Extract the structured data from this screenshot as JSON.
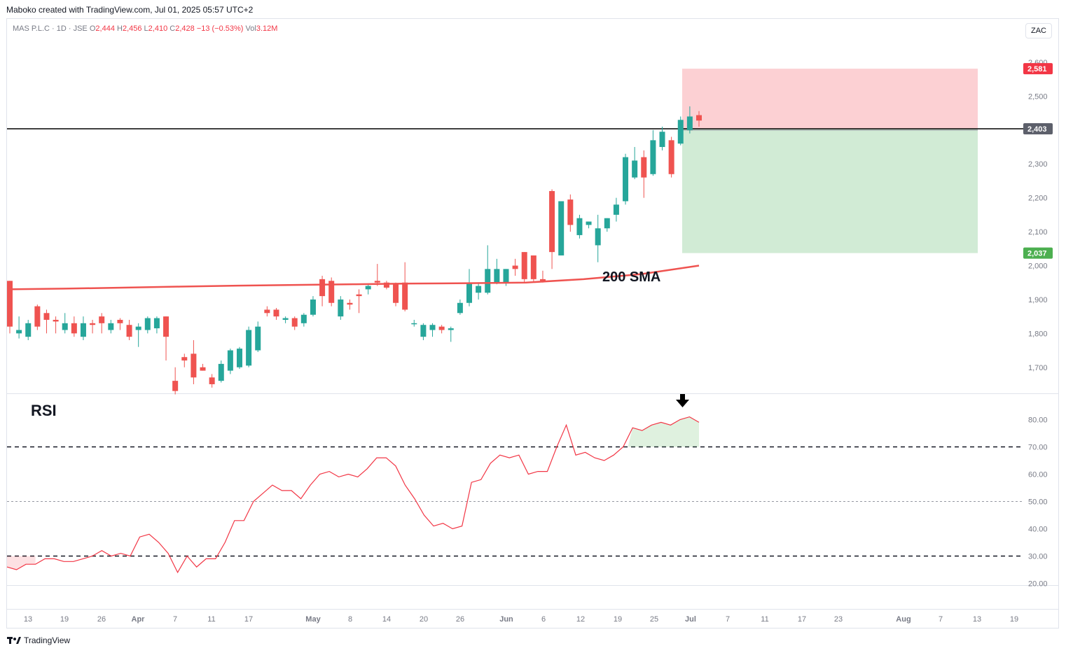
{
  "header": {
    "credit": "Maboko created with TradingView.com, Jul 01, 2025 05:57 UTC+2",
    "symbol": "MAS P.L.C · 1D · JSE",
    "o_label": "O",
    "o": "2,444",
    "h_label": "H",
    "h": "2,456",
    "l_label": "L",
    "l": "2,410",
    "c_label": "C",
    "c": "2,428",
    "change": "−13 (−0.53%)",
    "vol_label": "Vol",
    "vol": "3.12M",
    "currency": "ZAC"
  },
  "footer": {
    "brand": "TradingView",
    "logo_icon": "tradingview-logo-icon"
  },
  "colors": {
    "up": "#26a69a",
    "down": "#ef5350",
    "sma": "#ef5350",
    "rsi": "#f23645",
    "stop_zone": "#fcd0d3",
    "target_zone": "#d1ebd5",
    "stop_tag": "#f23645",
    "target_tag": "#4caf50",
    "hline_tag": "#5d606b"
  },
  "annotations": {
    "sma_label": "200 SMA",
    "rsi_label": "RSI",
    "arrow_icon": "down-arrow-icon"
  },
  "price_tags": {
    "stop": "2,581",
    "hline": "2,403",
    "target": "2,037"
  },
  "chart_data": [
    {
      "type": "candlestick",
      "title": "MAS P.L.C · 1D · JSE",
      "x_ticks": [
        "13",
        "19",
        "26",
        "Apr",
        "7",
        "11",
        "17",
        "May",
        "8",
        "14",
        "20",
        "26",
        "Jun",
        "6",
        "12",
        "19",
        "25",
        "Jul",
        "7",
        "11",
        "17",
        "23",
        "Aug",
        "7",
        "13",
        "19"
      ],
      "y_ticks": [
        "1,700",
        "1,800",
        "1,900",
        "2,000",
        "2,100",
        "2,200",
        "2,300",
        "2,500",
        "2,600"
      ],
      "ylim": [
        1620,
        2640
      ],
      "candles": [
        {
          "o": 1955,
          "h": 1955,
          "l": 1800,
          "c": 1820
        },
        {
          "o": 1800,
          "h": 1850,
          "l": 1785,
          "c": 1810
        },
        {
          "o": 1790,
          "h": 1840,
          "l": 1780,
          "c": 1830
        },
        {
          "o": 1880,
          "h": 1885,
          "l": 1810,
          "c": 1820
        },
        {
          "o": 1860,
          "h": 1870,
          "l": 1800,
          "c": 1840
        },
        {
          "o": 1840,
          "h": 1850,
          "l": 1800,
          "c": 1835
        },
        {
          "o": 1810,
          "h": 1860,
          "l": 1800,
          "c": 1830
        },
        {
          "o": 1830,
          "h": 1850,
          "l": 1790,
          "c": 1800
        },
        {
          "o": 1790,
          "h": 1850,
          "l": 1780,
          "c": 1830
        },
        {
          "o": 1830,
          "h": 1840,
          "l": 1800,
          "c": 1825
        },
        {
          "o": 1850,
          "h": 1860,
          "l": 1800,
          "c": 1830
        },
        {
          "o": 1810,
          "h": 1840,
          "l": 1800,
          "c": 1830
        },
        {
          "o": 1840,
          "h": 1845,
          "l": 1810,
          "c": 1830
        },
        {
          "o": 1825,
          "h": 1840,
          "l": 1780,
          "c": 1790
        },
        {
          "o": 1810,
          "h": 1830,
          "l": 1760,
          "c": 1820
        },
        {
          "o": 1810,
          "h": 1850,
          "l": 1800,
          "c": 1845
        },
        {
          "o": 1815,
          "h": 1850,
          "l": 1800,
          "c": 1845
        },
        {
          "o": 1850,
          "h": 1850,
          "l": 1720,
          "c": 1790
        },
        {
          "o": 1660,
          "h": 1700,
          "l": 1620,
          "c": 1630
        },
        {
          "o": 1730,
          "h": 1740,
          "l": 1700,
          "c": 1720
        },
        {
          "o": 1740,
          "h": 1780,
          "l": 1650,
          "c": 1670
        },
        {
          "o": 1700,
          "h": 1710,
          "l": 1690,
          "c": 1690
        },
        {
          "o": 1670,
          "h": 1680,
          "l": 1640,
          "c": 1650
        },
        {
          "o": 1660,
          "h": 1720,
          "l": 1655,
          "c": 1710
        },
        {
          "o": 1690,
          "h": 1755,
          "l": 1680,
          "c": 1750
        },
        {
          "o": 1700,
          "h": 1760,
          "l": 1695,
          "c": 1755
        },
        {
          "o": 1705,
          "h": 1820,
          "l": 1700,
          "c": 1810
        },
        {
          "o": 1750,
          "h": 1835,
          "l": 1745,
          "c": 1820
        },
        {
          "o": 1870,
          "h": 1880,
          "l": 1850,
          "c": 1860
        },
        {
          "o": 1870,
          "h": 1875,
          "l": 1840,
          "c": 1850
        },
        {
          "o": 1840,
          "h": 1850,
          "l": 1830,
          "c": 1845
        },
        {
          "o": 1845,
          "h": 1850,
          "l": 1810,
          "c": 1820
        },
        {
          "o": 1830,
          "h": 1860,
          "l": 1820,
          "c": 1855
        },
        {
          "o": 1855,
          "h": 1910,
          "l": 1850,
          "c": 1900
        },
        {
          "o": 1960,
          "h": 1970,
          "l": 1880,
          "c": 1910
        },
        {
          "o": 1955,
          "h": 1965,
          "l": 1880,
          "c": 1890
        },
        {
          "o": 1850,
          "h": 1910,
          "l": 1840,
          "c": 1900
        },
        {
          "o": 1890,
          "h": 1900,
          "l": 1870,
          "c": 1885
        },
        {
          "o": 1915,
          "h": 1930,
          "l": 1860,
          "c": 1910
        },
        {
          "o": 1930,
          "h": 1945,
          "l": 1915,
          "c": 1940
        },
        {
          "o": 1955,
          "h": 2005,
          "l": 1940,
          "c": 1950
        },
        {
          "o": 1950,
          "h": 1955,
          "l": 1930,
          "c": 1935
        },
        {
          "o": 1945,
          "h": 1950,
          "l": 1880,
          "c": 1890
        },
        {
          "o": 1950,
          "h": 2010,
          "l": 1865,
          "c": 1870
        },
        {
          "o": 1830,
          "h": 1840,
          "l": 1820,
          "c": 1830
        },
        {
          "o": 1790,
          "h": 1830,
          "l": 1780,
          "c": 1825
        },
        {
          "o": 1810,
          "h": 1830,
          "l": 1790,
          "c": 1825
        },
        {
          "o": 1820,
          "h": 1825,
          "l": 1800,
          "c": 1810
        },
        {
          "o": 1810,
          "h": 1820,
          "l": 1775,
          "c": 1815
        },
        {
          "o": 1860,
          "h": 1900,
          "l": 1855,
          "c": 1890
        },
        {
          "o": 1890,
          "h": 1990,
          "l": 1880,
          "c": 1950
        },
        {
          "o": 1920,
          "h": 1950,
          "l": 1900,
          "c": 1940
        },
        {
          "o": 1920,
          "h": 2060,
          "l": 1915,
          "c": 1990
        },
        {
          "o": 1950,
          "h": 2020,
          "l": 1945,
          "c": 1990
        },
        {
          "o": 1950,
          "h": 1990,
          "l": 1940,
          "c": 1990
        },
        {
          "o": 2000,
          "h": 2020,
          "l": 1970,
          "c": 1990
        },
        {
          "o": 2040,
          "h": 2040,
          "l": 1950,
          "c": 1960
        },
        {
          "o": 2030,
          "h": 2030,
          "l": 1950,
          "c": 1960
        },
        {
          "o": 1960,
          "h": 1985,
          "l": 1950,
          "c": 1955
        },
        {
          "o": 2220,
          "h": 2225,
          "l": 1990,
          "c": 2040
        },
        {
          "o": 2030,
          "h": 2190,
          "l": 2030,
          "c": 2190
        },
        {
          "o": 2195,
          "h": 2210,
          "l": 2100,
          "c": 2120
        },
        {
          "o": 2090,
          "h": 2150,
          "l": 2080,
          "c": 2140
        },
        {
          "o": 2120,
          "h": 2130,
          "l": 2110,
          "c": 2130
        },
        {
          "o": 2060,
          "h": 2150,
          "l": 2010,
          "c": 2110
        },
        {
          "o": 2110,
          "h": 2140,
          "l": 2100,
          "c": 2140
        },
        {
          "o": 2150,
          "h": 2200,
          "l": 2130,
          "c": 2180
        },
        {
          "o": 2190,
          "h": 2330,
          "l": 2180,
          "c": 2320
        },
        {
          "o": 2260,
          "h": 2350,
          "l": 2255,
          "c": 2310
        },
        {
          "o": 2320,
          "h": 2340,
          "l": 2200,
          "c": 2260
        },
        {
          "o": 2270,
          "h": 2400,
          "l": 2265,
          "c": 2370
        },
        {
          "o": 2350,
          "h": 2410,
          "l": 2340,
          "c": 2395
        },
        {
          "o": 2370,
          "h": 2380,
          "l": 2260,
          "c": 2270
        },
        {
          "o": 2360,
          "h": 2440,
          "l": 2355,
          "c": 2430
        },
        {
          "o": 2400,
          "h": 2470,
          "l": 2390,
          "c": 2440
        },
        {
          "o": 2444,
          "h": 2456,
          "l": 2410,
          "c": 2428
        }
      ],
      "sma_200": [
        1930,
        1932,
        1935,
        1938,
        1941,
        1943,
        1945,
        1947,
        1948,
        1950,
        1960,
        1975,
        2000
      ]
    },
    {
      "type": "line",
      "title": "RSI",
      "y_ticks": [
        "20.00",
        "30.00",
        "40.00",
        "50.00",
        "60.00",
        "70.00",
        "80.00"
      ],
      "ylim": [
        18,
        86
      ],
      "levels": [
        70,
        50,
        30
      ],
      "values": [
        26,
        25,
        27,
        27,
        29,
        29,
        28,
        28,
        29,
        30,
        32,
        30,
        31,
        30,
        37,
        38,
        35,
        31,
        24,
        30,
        26,
        29,
        29,
        35,
        43,
        43,
        50,
        53,
        56,
        54,
        54,
        51,
        56,
        60,
        61,
        59,
        60,
        59,
        62,
        66,
        66,
        63,
        56,
        51,
        45,
        41,
        42,
        40,
        41,
        57,
        58,
        64,
        67,
        66,
        67,
        60,
        61,
        61,
        70,
        78,
        67,
        68,
        66,
        65,
        67,
        70,
        77,
        76,
        78,
        79,
        78,
        80,
        81,
        79
      ]
    }
  ]
}
